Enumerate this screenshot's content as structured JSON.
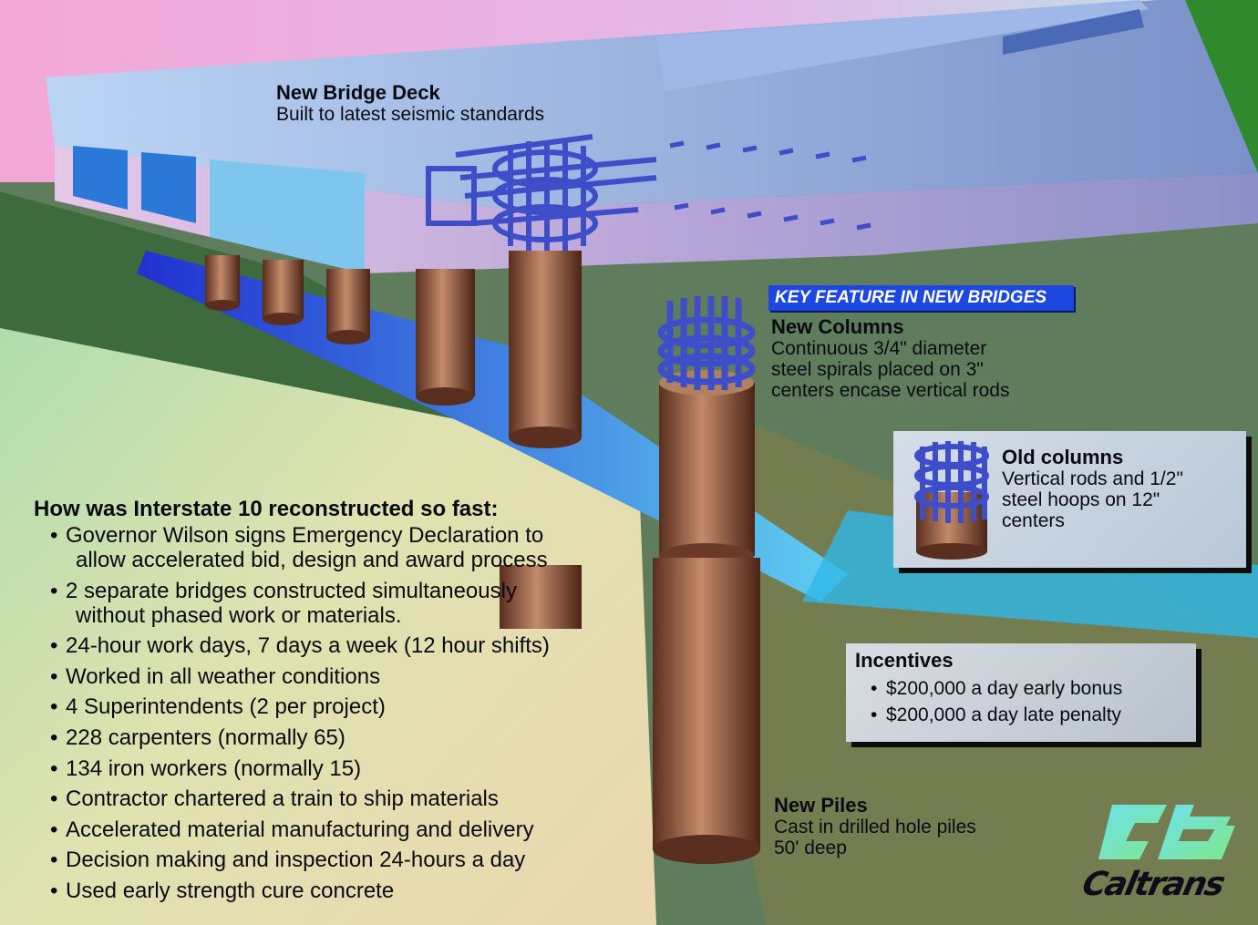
{
  "deck": {
    "title": "New Bridge Deck",
    "subtitle": "Built to latest seismic standards"
  },
  "key_feature": {
    "banner": "KEY FEATURE IN NEW BRIDGES"
  },
  "new_columns": {
    "title": "New Columns",
    "lines": [
      "Continuous 3/4\" diameter",
      "steel spirals placed on 3\"",
      "centers encase vertical rods"
    ]
  },
  "old_columns": {
    "title": "Old columns",
    "lines": [
      "Vertical rods and 1/2\"",
      "steel hoops on 12\"",
      "centers"
    ]
  },
  "incentives": {
    "title": "Incentives",
    "items": [
      "$200,000 a day early bonus",
      "$200,000 a day late penalty"
    ]
  },
  "piles": {
    "title": "New Piles",
    "lines": [
      "Cast in drilled hole piles",
      "50'  deep"
    ]
  },
  "how": {
    "title": "How was Interstate 10 reconstructed so fast:",
    "items": [
      {
        "l1": "Governor Wilson signs Emergency Declaration to",
        "l2": "allow accelerated bid, design and award process"
      },
      {
        "l1": "2 separate bridges constructed simultaneously",
        "l2": "without phased work or materials."
      },
      {
        "l1": "24-hour work days, 7 days a week (12 hour shifts)"
      },
      {
        "l1": "Worked in all weather conditions"
      },
      {
        "l1": "4 Superintendents (2 per project)"
      },
      {
        "l1": "228 carpenters (normally 65)"
      },
      {
        "l1": "134 iron workers (normally 15)"
      },
      {
        "l1": "Contractor chartered a train to ship materials"
      },
      {
        "l1": "Accelerated material manufacturing and delivery"
      },
      {
        "l1": "Decision making and inspection 24-hours a day"
      },
      {
        "l1": "Used early strength cure concrete"
      }
    ]
  },
  "logo": {
    "text": "Caltrans"
  },
  "colors": {
    "ground": "#5f7d5c",
    "deck": "#8fa6e0",
    "concrete": "#8a5a3e",
    "rebar": "#3e4ec8",
    "banner": "#1c47e0"
  }
}
